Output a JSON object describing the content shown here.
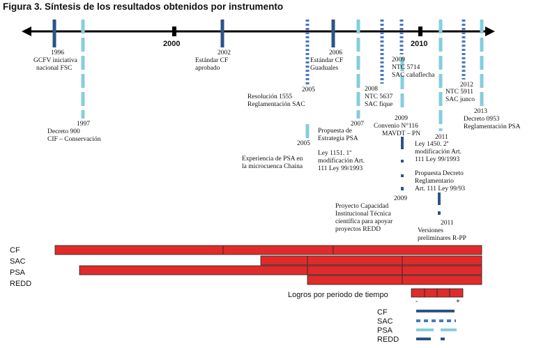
{
  "title": "Figura 3. Síntesis de los resultados obtenidos por instrumento",
  "timeline": {
    "year_2000": "2000",
    "year_2010": "2010"
  },
  "events": [
    {
      "id": "e1996",
      "lines": [
        "1996",
        "GCFV iniciativa",
        "nacional FSC"
      ],
      "style": "CF"
    },
    {
      "id": "e1997",
      "lines": [
        "1997",
        "Decreto  900",
        "CIF – Conservación"
      ],
      "style": "PSA"
    },
    {
      "id": "e2002",
      "lines": [
        "2002",
        "Estándar  CF",
        "aprobado"
      ],
      "style": "CF"
    },
    {
      "id": "e2005a",
      "lines": [
        "2005",
        "Resolución 1555",
        "Reglamentación SAC"
      ],
      "style": "SAC"
    },
    {
      "id": "e2005b",
      "lines": [
        "2005",
        "Experiencia de PSA en",
        "la microcuenca Chaina"
      ],
      "style": "PSA"
    },
    {
      "id": "e2006",
      "lines": [
        "2006",
        "Estándar CF",
        "Guaduales"
      ],
      "style": "CF"
    },
    {
      "id": "e2007",
      "lines": [
        "2007",
        "Propuesta de",
        "Estrategia PSA",
        "Ley 1151. 1ª",
        "modificación  Art.",
        "111 Ley 99/1993"
      ],
      "style": "PSA"
    },
    {
      "id": "e2008",
      "lines": [
        "2008",
        "NTC 5637",
        "SAC fique"
      ],
      "style": "SAC"
    },
    {
      "id": "e2009a",
      "lines": [
        "2009",
        "NTC  5714",
        "SAC cañaflecha"
      ],
      "style": "SAC"
    },
    {
      "id": "e2009b",
      "lines": [
        "2009",
        "Convenio N°116",
        "MAVDT – PN"
      ],
      "style": "PSA"
    },
    {
      "id": "e2009c",
      "lines": [
        "2009",
        "Proyecto Capacidad",
        "Institucional Técnica",
        "científica para apoyar",
        "proyectos REDD"
      ],
      "style": "REDD"
    },
    {
      "id": "e2011a",
      "lines": [
        "2011",
        "Ley 1450. 2ª",
        "modificación  Art.",
        "111 Ley 99/1993",
        "Propuesta Decreto",
        "Reglamentario",
        "Art. 111 Ley 99/93"
      ],
      "style": "PSA"
    },
    {
      "id": "e2011b",
      "lines": [
        "2011",
        "Versiones",
        "preliminares R-PP"
      ],
      "style": "REDD"
    },
    {
      "id": "e2012",
      "lines": [
        "2012",
        "NTC 5911",
        "SAC junco"
      ],
      "style": "SAC"
    },
    {
      "id": "e2013",
      "lines": [
        "2013",
        "Decreto 0953",
        "Reglamentación PSA"
      ],
      "style": "PSA"
    }
  ],
  "rows": [
    "CF",
    "SAC",
    "PSA",
    "REDD"
  ],
  "achievements": {
    "label": "Logros por periodo de tiempo",
    "minus": "-",
    "plus": "+"
  },
  "legend": [
    "CF",
    "SAC",
    "PSA",
    "REDD"
  ],
  "colors": {
    "cf": "#2c5487",
    "sac": "#4a78c0",
    "psa": "#86cddd",
    "redd": "#2c5487",
    "bar_fill": "#e02b2b",
    "bar_stroke": "#222222",
    "axis": "#000000"
  }
}
